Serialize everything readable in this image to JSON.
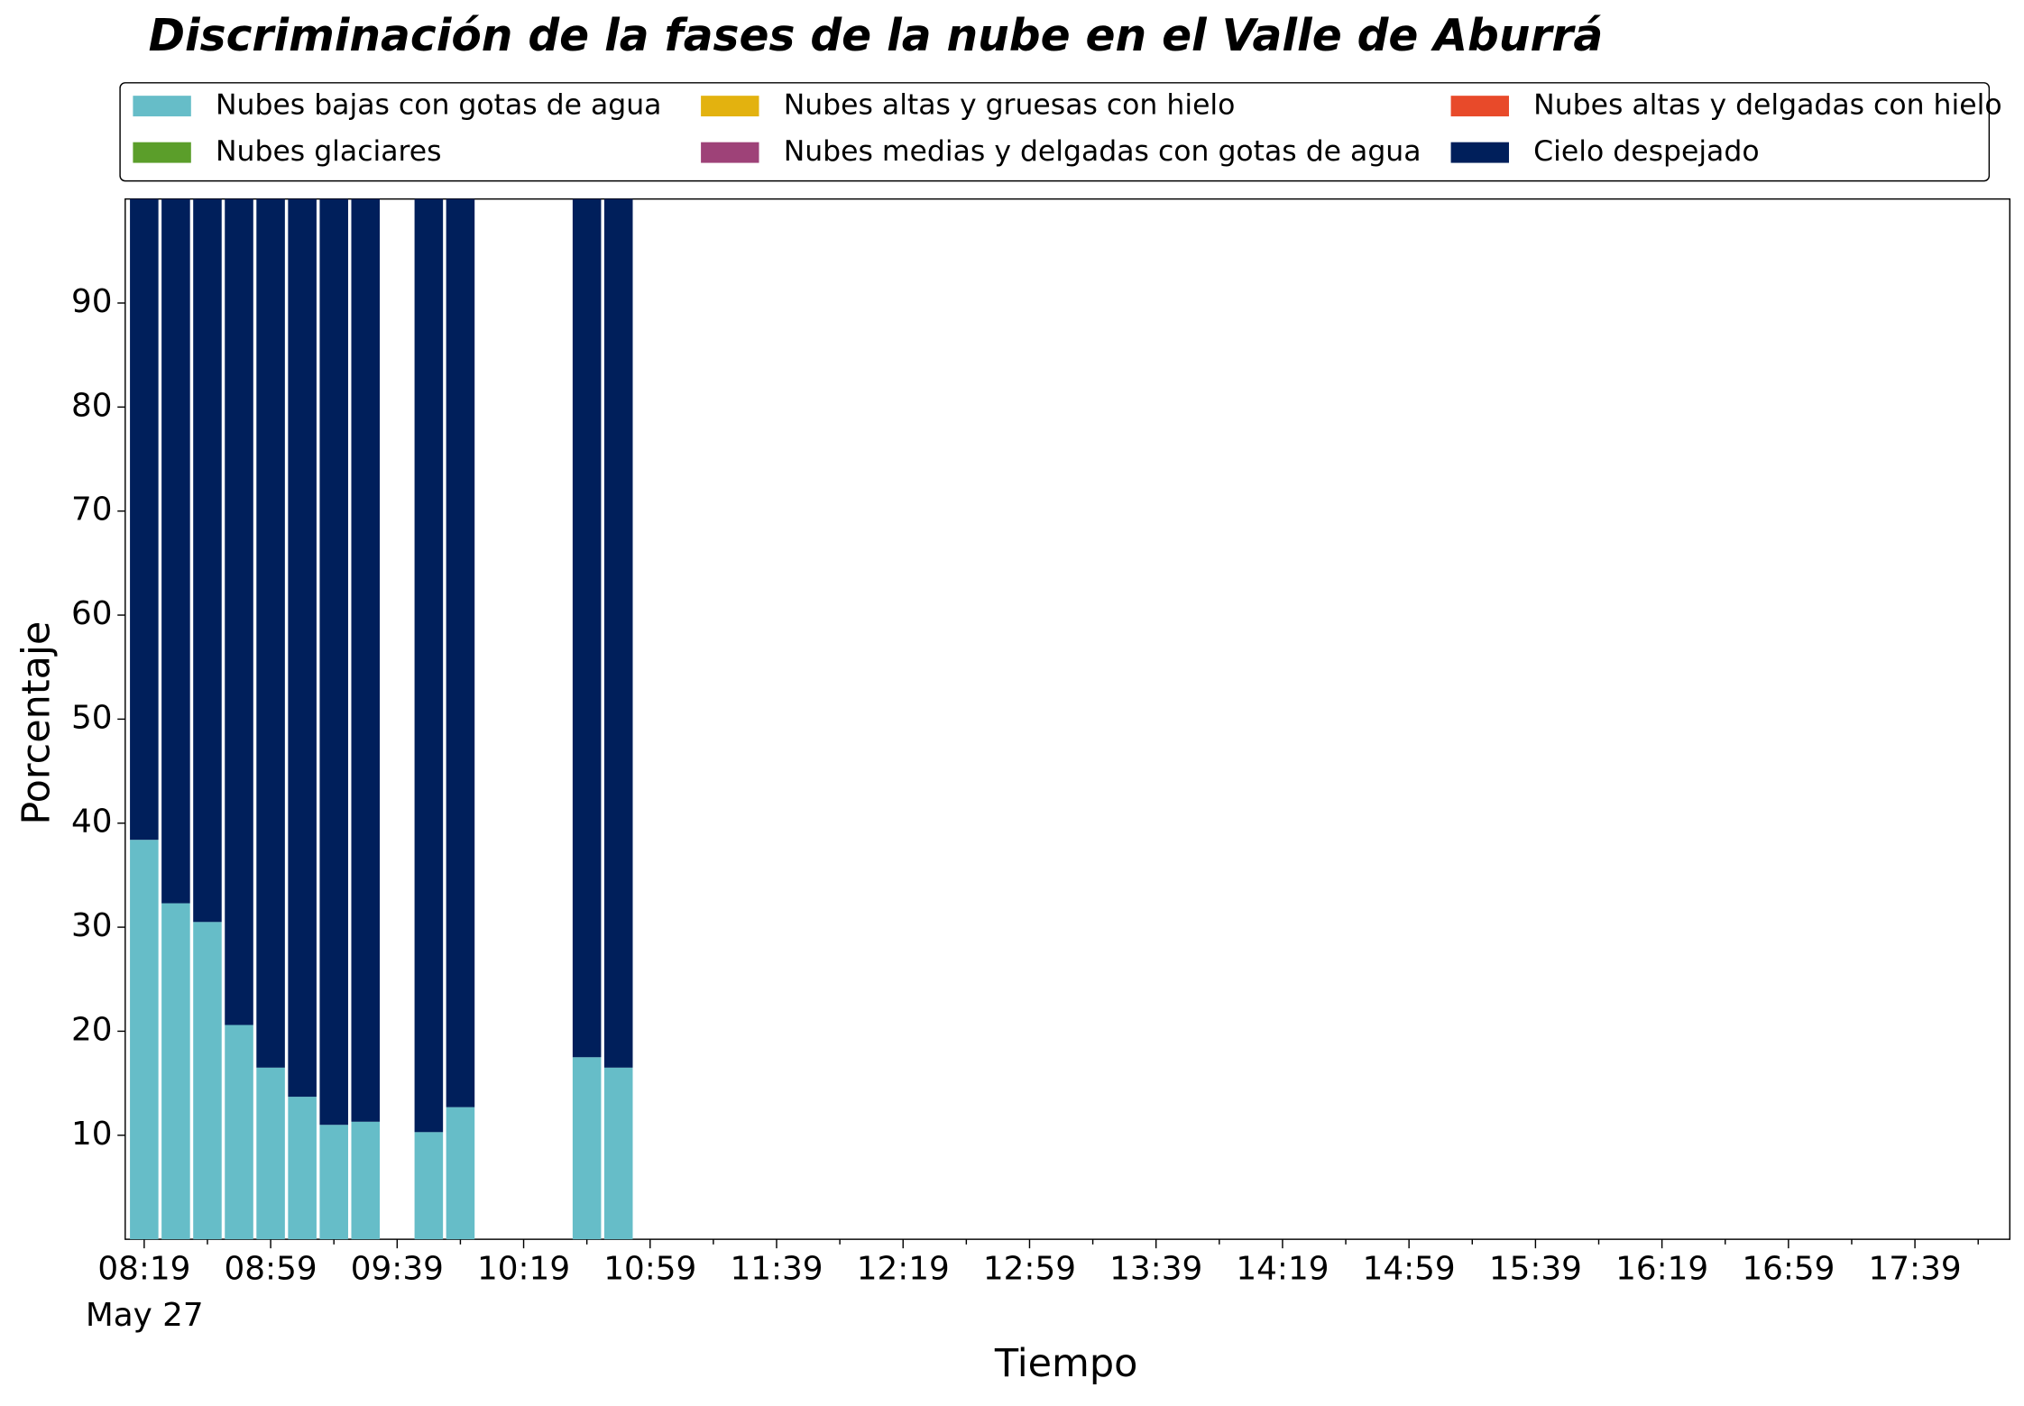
{
  "chart_data": {
    "type": "stacked_bar",
    "title": "Discriminación de la fases de la nube en el Valle de Aburrá",
    "x_label": "Tiempo",
    "y_label": "Porcentaje",
    "x": [
      "08:19",
      "08:29",
      "08:39",
      "08:49",
      "08:59",
      "09:09",
      "09:19",
      "09:29",
      "09:49",
      "09:59",
      "10:39",
      "10:49"
    ],
    "bar_width_minutes": 9,
    "series": [
      {
        "name": "Nubes bajas con gotas de agua",
        "color": "#66bdc8",
        "values": [
          38.4,
          32.3,
          30.5,
          20.6,
          16.5,
          13.7,
          11.0,
          11.3,
          10.3,
          12.7,
          17.5,
          16.5
        ]
      },
      {
        "name": "Nubes glaciares",
        "color": "#5b9e2a",
        "values": [
          0,
          0,
          0,
          0,
          0,
          0,
          0,
          0,
          0,
          0,
          0,
          0
        ]
      },
      {
        "name": "Nubes altas y gruesas con hielo",
        "color": "#e3b20f",
        "values": [
          0,
          0,
          0,
          0,
          0,
          0,
          0,
          0,
          0,
          0,
          0,
          0
        ]
      },
      {
        "name": "Nubes medias y delgadas con gotas de agua",
        "color": "#9e4278",
        "values": [
          0,
          0,
          0,
          0,
          0,
          0,
          0,
          0,
          0,
          0,
          0,
          0
        ]
      },
      {
        "name": "Nubes altas y delgadas con hielo",
        "color": "#e84a2a",
        "values": [
          0,
          0,
          0,
          0,
          0,
          0,
          0,
          0,
          0,
          0,
          0,
          0
        ]
      },
      {
        "name": "Cielo despejado",
        "color": "#001f5b",
        "values": [
          61.6,
          67.7,
          69.5,
          79.4,
          83.5,
          86.3,
          89.0,
          88.7,
          89.7,
          87.3,
          82.5,
          83.5
        ]
      }
    ],
    "xlim": [
      "08:13",
      "18:09"
    ],
    "xticks": [
      "08:19",
      "08:59",
      "09:39",
      "10:19",
      "10:59",
      "11:39",
      "12:19",
      "12:59",
      "13:39",
      "14:19",
      "14:59",
      "15:39",
      "16:19",
      "16:59",
      "17:39"
    ],
    "xminorticks": [
      "08:39",
      "09:19",
      "09:59",
      "10:39",
      "11:19",
      "11:59",
      "12:39",
      "13:19",
      "13:59",
      "14:39",
      "15:19",
      "15:59",
      "16:39",
      "17:19",
      "17:59"
    ],
    "date_label": "May 27",
    "ylim": [
      0,
      100
    ],
    "yticks": [
      10,
      20,
      30,
      40,
      50,
      60,
      70,
      80,
      90
    ],
    "legend_columns": 3,
    "legend_position": "top"
  }
}
